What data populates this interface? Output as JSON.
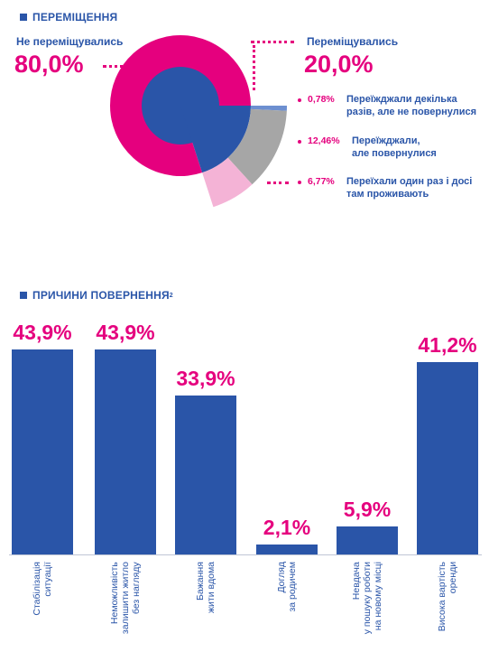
{
  "section1": {
    "title": "ПЕРЕМІЩЕННЯ"
  },
  "donut": {
    "not_moved_label": "Не переміщувались",
    "not_moved_pct": "80,0%",
    "moved_label": "Переміщувались",
    "moved_pct": "20,0%",
    "sub": [
      {
        "pct": "0,78%",
        "text": "Переїжджали декілька\nразів, але не повернулися"
      },
      {
        "pct": "12,46%",
        "text": "Переїжджали,\nале повернулися"
      },
      {
        "pct": "6,77%",
        "text": "Переїхали один раз і досі\nтам проживають"
      }
    ],
    "colors": {
      "magenta": "#e5007e",
      "blue": "#2a55a8",
      "gray": "#a6a6a6",
      "pink": "#f4b3d6",
      "blueLight": "#6d8fd0"
    }
  },
  "section2": {
    "title": "ПРИЧИНИ ПОВЕРНЕННЯ",
    "sup": "2"
  },
  "chart_data": [
    {
      "type": "pie",
      "categories": [
        "Не переміщувались",
        "Переміщувались"
      ],
      "values": [
        80.0,
        20.0
      ],
      "moved_breakdown": {
        "categories": [
          "Переїжджали декілька разів, але не повернулися",
          "Переїжджали, але повернулися",
          "Переїхали один раз і досі там проживають"
        ],
        "values": [
          0.78,
          12.46,
          6.77
        ]
      }
    },
    {
      "type": "bar",
      "title": "ПРИЧИНИ ПОВЕРНЕННЯ",
      "categories": [
        "Стабілізація\nситуації",
        "Неможливість\nзалишити житло\nбез нагляду",
        "Бажання\nжити вдома",
        "Догляд\nза родичем",
        "Невдача\nу пошуку роботи\nна новому місці",
        "Висока вартість\nоренди"
      ],
      "values": [
        43.9,
        43.9,
        33.9,
        2.1,
        5.9,
        41.2
      ],
      "value_labels": [
        "43,9%",
        "43,9%",
        "33,9%",
        "2,1%",
        "5,9%",
        "41,2%"
      ],
      "ylim": [
        0,
        45
      ]
    }
  ]
}
